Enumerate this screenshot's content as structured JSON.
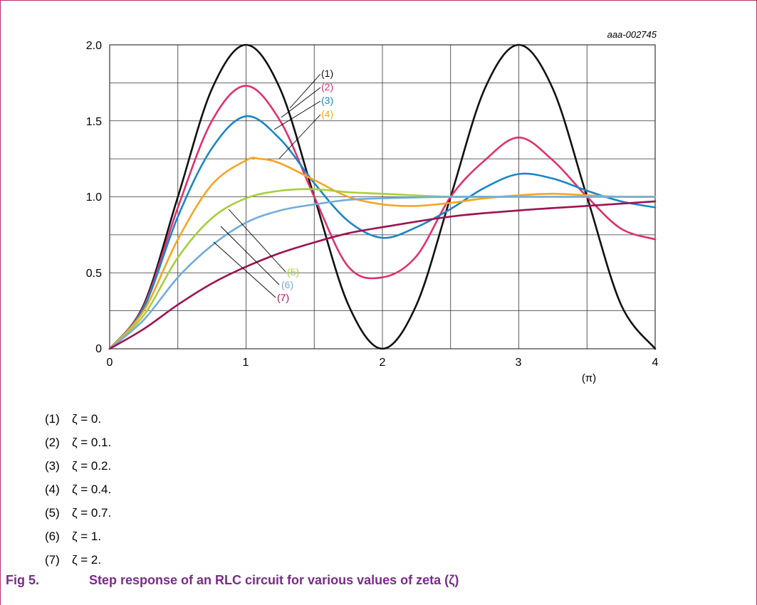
{
  "chart_data": {
    "type": "line",
    "id_label": "aaa-002745",
    "xunit_label": "(π)",
    "xlim": [
      0,
      4
    ],
    "ylim": [
      0,
      2
    ],
    "xticks": [
      "0",
      "1",
      "2",
      "3",
      "4"
    ],
    "yticks": [
      "0",
      "0.5",
      "1.0",
      "1.5",
      "2.0"
    ],
    "grid": true,
    "series": [
      {
        "name": "(1)",
        "zeta": 0,
        "color": "#111111",
        "x": [
          0,
          0.25,
          0.5,
          0.75,
          1,
          1.25,
          1.5,
          1.75,
          2,
          2.25,
          2.5,
          2.75,
          3,
          3.25,
          3.5,
          3.75,
          4
        ],
        "y": [
          0,
          0.29,
          1,
          1.71,
          2,
          1.71,
          1,
          0.29,
          0,
          0.29,
          1,
          1.71,
          2,
          1.71,
          1,
          0.29,
          0
        ]
      },
      {
        "name": "(2)",
        "zeta": 0.1,
        "color": "#e0306e",
        "x": [
          0,
          0.25,
          0.5,
          0.75,
          1,
          1.25,
          1.5,
          1.75,
          2,
          2.25,
          2.5,
          2.75,
          3,
          3.25,
          3.5,
          3.75,
          4
        ],
        "y": [
          0,
          0.28,
          0.93,
          1.5,
          1.73,
          1.5,
          1.0,
          0.54,
          0.47,
          0.61,
          1.0,
          1.24,
          1.39,
          1.24,
          1.0,
          0.79,
          0.72
        ]
      },
      {
        "name": "(3)",
        "zeta": 0.2,
        "color": "#1a86c4",
        "x": [
          0,
          0.25,
          0.5,
          0.75,
          1,
          1.25,
          1.5,
          1.75,
          2,
          2.25,
          2.5,
          2.75,
          3,
          3.25,
          3.5,
          3.75,
          4
        ],
        "y": [
          0,
          0.27,
          0.87,
          1.32,
          1.53,
          1.38,
          1.09,
          0.84,
          0.73,
          0.8,
          0.92,
          1.06,
          1.15,
          1.12,
          1.04,
          0.97,
          0.93
        ]
      },
      {
        "name": "(4)",
        "zeta": 0.4,
        "color": "#f5a623",
        "x": [
          0,
          0.25,
          0.5,
          0.75,
          1,
          1.1,
          1.25,
          1.5,
          1.75,
          2,
          2.25,
          2.5,
          2.75,
          3,
          3.25,
          3.5,
          3.75,
          4
        ],
        "y": [
          0,
          0.25,
          0.72,
          1.08,
          1.24,
          1.25,
          1.22,
          1.11,
          1.0,
          0.95,
          0.94,
          0.96,
          0.99,
          1.01,
          1.02,
          1.01,
          1.0,
          1.0
        ]
      },
      {
        "name": "(5)",
        "zeta": 0.7,
        "color": "#a8cf3a",
        "x": [
          0,
          0.25,
          0.5,
          0.75,
          1,
          1.25,
          1.5,
          1.75,
          2,
          2.5,
          3,
          3.5,
          4
        ],
        "y": [
          0,
          0.22,
          0.6,
          0.86,
          0.99,
          1.04,
          1.05,
          1.03,
          1.02,
          1.0,
          1.0,
          1.0,
          1.0
        ]
      },
      {
        "name": "(6)",
        "zeta": 1,
        "color": "#72acdc",
        "x": [
          0,
          0.25,
          0.5,
          0.75,
          1,
          1.25,
          1.5,
          1.75,
          2,
          2.5,
          3,
          3.5,
          4
        ],
        "y": [
          0,
          0.19,
          0.47,
          0.68,
          0.83,
          0.91,
          0.95,
          0.98,
          0.99,
          1.0,
          1.0,
          1.0,
          1.0
        ]
      },
      {
        "name": "(7)",
        "zeta": 2,
        "color": "#9c1352",
        "x": [
          0,
          0.25,
          0.5,
          0.75,
          1,
          1.25,
          1.5,
          1.75,
          2,
          2.5,
          3,
          3.5,
          4
        ],
        "y": [
          0,
          0.13,
          0.29,
          0.43,
          0.54,
          0.63,
          0.7,
          0.76,
          0.8,
          0.87,
          0.91,
          0.94,
          0.97
        ]
      }
    ]
  },
  "legend_items": [
    {
      "num": "(1)",
      "text": "ζ = 0."
    },
    {
      "num": "(2)",
      "text": "ζ = 0.1."
    },
    {
      "num": "(3)",
      "text": "ζ = 0.2."
    },
    {
      "num": "(4)",
      "text": "ζ = 0.4."
    },
    {
      "num": "(5)",
      "text": "ζ = 0.7."
    },
    {
      "num": "(6)",
      "text": "ζ = 1."
    },
    {
      "num": "(7)",
      "text": "ζ = 2."
    }
  ],
  "caption": {
    "fig": "Fig 5.",
    "text": "Step response of an RLC circuit for various values of zeta (ζ)",
    "color": "#7b2a8a"
  }
}
